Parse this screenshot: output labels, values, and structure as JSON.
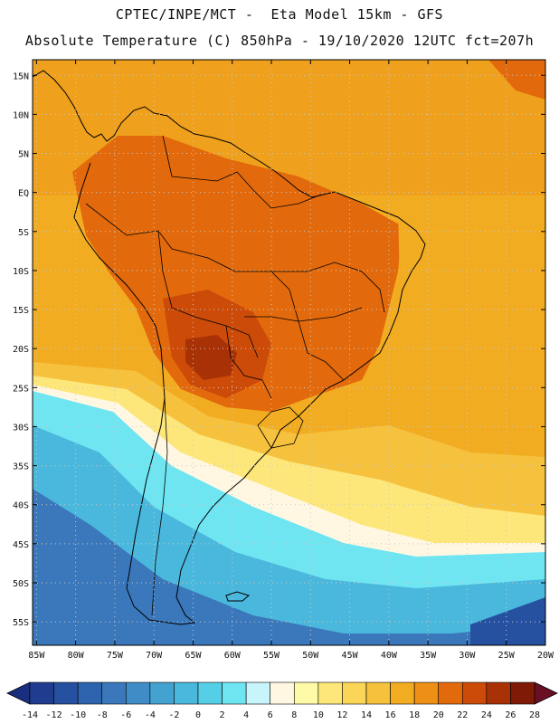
{
  "header": {
    "line1": "CPTEC/INPE/MCT -  Eta Model 15km - GFS",
    "line2": "Absolute Temperature (C) 850hPa - 19/10/2020 12UTC fct=207h"
  },
  "map": {
    "lat_labels": [
      "15N",
      "10N",
      "5N",
      "EQ",
      "5S",
      "10S",
      "15S",
      "20S",
      "25S",
      "30S",
      "35S",
      "40S",
      "45S",
      "50S",
      "55S"
    ],
    "lat_values": [
      15,
      10,
      5,
      0,
      -5,
      -10,
      -15,
      -20,
      -25,
      -30,
      -35,
      -40,
      -45,
      -50,
      -55
    ],
    "lon_labels": [
      "85W",
      "80W",
      "75W",
      "70W",
      "65W",
      "60W",
      "55W",
      "50W",
      "45W",
      "40W",
      "35W",
      "30W",
      "25W",
      "20W"
    ],
    "lon_values": [
      -85,
      -80,
      -75,
      -70,
      -65,
      -60,
      -55,
      -50,
      -45,
      -40,
      -35,
      -30,
      -25,
      -20
    ],
    "lat_range": [
      -58,
      17
    ],
    "lon_range": [
      -85.5,
      -20
    ]
  },
  "colorbar": {
    "labels": [
      "-14",
      "-12",
      "-10",
      "-8",
      "-6",
      "-4",
      "-2",
      "0",
      "2",
      "4",
      "6",
      "8",
      "10",
      "12",
      "14",
      "16",
      "18",
      "20",
      "22",
      "24",
      "26",
      "28"
    ],
    "colors": [
      "#1f3c8f",
      "#2650a0",
      "#2e64ae",
      "#3a78bb",
      "#3f8cc6",
      "#44a2d0",
      "#4ab8dc",
      "#55cfe6",
      "#6fe5f2",
      "#c7f5fb",
      "#fff7e2",
      "#fffaa8",
      "#fde77a",
      "#fbd558",
      "#f6c23d",
      "#f2ac22",
      "#ef9016",
      "#e36a0c",
      "#cc4b08",
      "#a83206",
      "#7e1a05"
    ],
    "low_color": "#1a2e80",
    "high_color": "#6b0f24"
  }
}
